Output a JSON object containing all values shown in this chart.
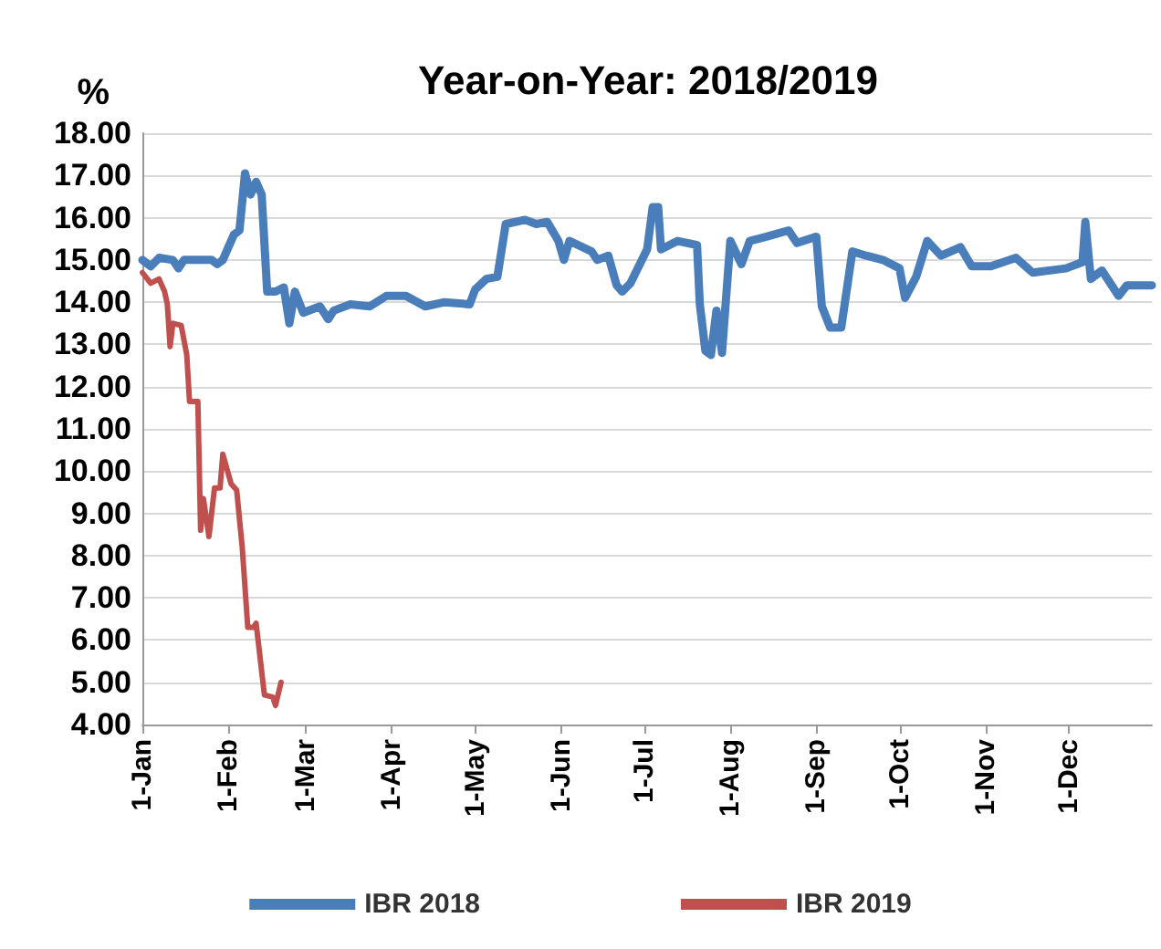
{
  "chart_data": {
    "type": "line",
    "title": "Year-on-Year: 2018/2019",
    "ylabel": "%",
    "xlim": [
      "--01-01",
      "--12-31"
    ],
    "xticks": [
      {
        "value": "--01-01",
        "label": "1-Jan"
      },
      {
        "value": "--02-01",
        "label": "1-Feb"
      },
      {
        "value": "--03-01",
        "label": "1-Mar"
      },
      {
        "value": "--04-01",
        "label": "1-Apr"
      },
      {
        "value": "--05-01",
        "label": "1-May"
      },
      {
        "value": "--06-01",
        "label": "1-Jun"
      },
      {
        "value": "--07-01",
        "label": "1-Jul"
      },
      {
        "value": "--08-01",
        "label": "1-Aug"
      },
      {
        "value": "--09-01",
        "label": "1-Sep"
      },
      {
        "value": "--10-01",
        "label": "1-Oct"
      },
      {
        "value": "--11-01",
        "label": "1-Nov"
      },
      {
        "value": "--12-01",
        "label": "1-Dec"
      }
    ],
    "ylim": [
      4,
      18
    ],
    "yticks": [
      {
        "value": 4,
        "label": "4.00"
      },
      {
        "value": 5,
        "label": "5.00"
      },
      {
        "value": 6,
        "label": "6.00"
      },
      {
        "value": 7,
        "label": "7.00"
      },
      {
        "value": 8,
        "label": "8.00"
      },
      {
        "value": 9,
        "label": "9.00"
      },
      {
        "value": 10,
        "label": "10.00"
      },
      {
        "value": 11,
        "label": "11.00"
      },
      {
        "value": 12,
        "label": "12.00"
      },
      {
        "value": 13,
        "label": "13.00"
      },
      {
        "value": 14,
        "label": "14.00"
      },
      {
        "value": 15,
        "label": "15.00"
      },
      {
        "value": 16,
        "label": "16.00"
      },
      {
        "value": 17,
        "label": "17.00"
      },
      {
        "value": 18,
        "label": "18.00"
      }
    ],
    "grid": "y",
    "legend": "bottom",
    "marker": "none",
    "line_style": "solid",
    "series": [
      {
        "name": "IBR 2018",
        "color": "#4a7ebb",
        "x": [
          "--01-01",
          "--01-04",
          "--01-07",
          "--01-12",
          "--01-14",
          "--01-16",
          "--01-26",
          "--01-28",
          "--01-30",
          "--02-03",
          "--02-05",
          "--02-07",
          "--02-09",
          "--02-11",
          "--02-13",
          "--02-15",
          "--02-18",
          "--02-21",
          "--02-23",
          "--02-25",
          "--02-28",
          "--03-06",
          "--03-09",
          "--03-11",
          "--03-17",
          "--03-24",
          "--03-30",
          "--04-06",
          "--04-13",
          "--04-20",
          "--04-29",
          "--05-01",
          "--05-05",
          "--05-09",
          "--05-12",
          "--05-19",
          "--05-23",
          "--05-27",
          "--05-31",
          "--06-02",
          "--06-04",
          "--06-12",
          "--06-14",
          "--06-18",
          "--06-21",
          "--06-23",
          "--06-26",
          "--07-02",
          "--07-04",
          "--07-06",
          "--07-07",
          "--07-13",
          "--07-20",
          "--07-21",
          "--07-23",
          "--07-25",
          "--07-27",
          "--07-29",
          "--08-01",
          "--08-05",
          "--08-08",
          "--08-14",
          "--08-22",
          "--08-25",
          "--09-01",
          "--09-03",
          "--09-06",
          "--09-10",
          "--09-14",
          "--09-19",
          "--09-25",
          "--10-01",
          "--10-03",
          "--10-07",
          "--10-11",
          "--10-16",
          "--10-23",
          "--10-27",
          "--11-03",
          "--11-12",
          "--11-18",
          "--11-30",
          "--12-06",
          "--12-07",
          "--12-09",
          "--12-13",
          "--12-19",
          "--12-22",
          "--12-31"
        ],
        "values": [
          15.0,
          14.85,
          15.05,
          15.0,
          14.8,
          15.0,
          15.0,
          14.9,
          15.0,
          15.6,
          15.7,
          17.05,
          16.55,
          16.85,
          16.55,
          14.25,
          14.25,
          14.35,
          13.5,
          14.25,
          13.75,
          13.9,
          13.6,
          13.8,
          13.95,
          13.9,
          14.15,
          14.15,
          13.9,
          14.0,
          13.95,
          14.3,
          14.55,
          14.6,
          15.85,
          15.95,
          15.85,
          15.9,
          15.45,
          15.0,
          15.45,
          15.2,
          15.0,
          15.1,
          14.4,
          14.25,
          14.45,
          15.25,
          16.25,
          16.25,
          15.25,
          15.45,
          15.35,
          13.95,
          12.85,
          12.75,
          13.8,
          12.8,
          15.45,
          14.9,
          15.45,
          15.55,
          15.7,
          15.4,
          15.55,
          13.9,
          13.4,
          13.4,
          15.2,
          15.1,
          15.0,
          14.8,
          14.1,
          14.6,
          15.45,
          15.1,
          15.3,
          14.85,
          14.85,
          15.05,
          14.7,
          14.8,
          14.95,
          15.9,
          14.55,
          14.75,
          14.15,
          14.4,
          14.4
        ]
      },
      {
        "name": "IBR 2019",
        "color": "#c0504d",
        "x": [
          "--01-01",
          "--01-04",
          "--01-07",
          "--01-09",
          "--01-10",
          "--01-11",
          "--01-12",
          "--01-15",
          "--01-17",
          "--01-18",
          "--01-21",
          "--01-22",
          "--01-23",
          "--01-25",
          "--01-27",
          "--01-29",
          "--01-30",
          "--02-02",
          "--02-04",
          "--02-06",
          "--02-08",
          "--02-10",
          "--02-11",
          "--02-14",
          "--02-17",
          "--02-18",
          "--02-20"
        ],
        "values": [
          14.7,
          14.45,
          14.55,
          14.25,
          13.95,
          12.95,
          13.5,
          13.45,
          12.75,
          11.65,
          11.65,
          8.6,
          9.35,
          8.45,
          9.6,
          9.6,
          10.4,
          9.7,
          9.55,
          8.2,
          6.3,
          6.3,
          6.4,
          4.7,
          4.65,
          4.45,
          5.0
        ]
      }
    ]
  }
}
